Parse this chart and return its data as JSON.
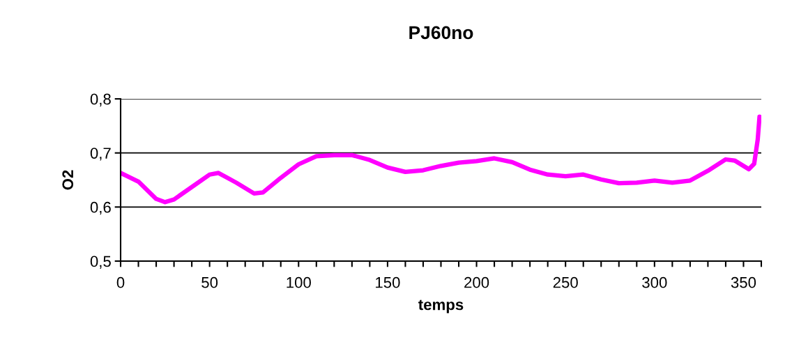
{
  "chart_data": {
    "type": "line",
    "title": "PJ60no",
    "xlabel": "temps",
    "ylabel": "O2",
    "x": [
      0,
      10,
      20,
      25,
      30,
      40,
      50,
      55,
      65,
      75,
      80,
      90,
      100,
      110,
      120,
      130,
      140,
      150,
      160,
      170,
      180,
      190,
      200,
      210,
      220,
      230,
      240,
      250,
      260,
      270,
      280,
      290,
      300,
      310,
      320,
      330,
      340,
      345,
      353,
      356,
      358,
      359
    ],
    "series": [
      {
        "color": "#ff00ff",
        "values": [
          0.663,
          0.647,
          0.615,
          0.609,
          0.614,
          0.637,
          0.66,
          0.663,
          0.645,
          0.625,
          0.627,
          0.654,
          0.679,
          0.694,
          0.696,
          0.696,
          0.687,
          0.673,
          0.665,
          0.668,
          0.676,
          0.682,
          0.685,
          0.69,
          0.683,
          0.669,
          0.66,
          0.657,
          0.66,
          0.651,
          0.644,
          0.645,
          0.649,
          0.645,
          0.649,
          0.667,
          0.688,
          0.686,
          0.67,
          0.68,
          0.725,
          0.767
        ]
      }
    ],
    "xlim": [
      0,
      360
    ],
    "xticks": [
      0,
      {
        "value": 10,
        "label": null
      },
      {
        "value": 20,
        "label": null
      },
      {
        "value": 30,
        "label": null
      },
      {
        "value": 40,
        "label": null
      },
      50,
      {
        "value": 60,
        "label": null
      },
      {
        "value": 70,
        "label": null
      },
      {
        "value": 80,
        "label": null
      },
      {
        "value": 90,
        "label": null
      },
      100,
      {
        "value": 110,
        "label": null
      },
      {
        "value": 120,
        "label": null
      },
      {
        "value": 130,
        "label": null
      },
      {
        "value": 140,
        "label": null
      },
      150,
      {
        "value": 160,
        "label": null
      },
      {
        "value": 170,
        "label": null
      },
      {
        "value": 180,
        "label": null
      },
      {
        "value": 190,
        "label": null
      },
      200,
      {
        "value": 210,
        "label": null
      },
      {
        "value": 220,
        "label": null
      },
      {
        "value": 230,
        "label": null
      },
      {
        "value": 240,
        "label": null
      },
      250,
      {
        "value": 260,
        "label": null
      },
      {
        "value": 270,
        "label": null
      },
      {
        "value": 280,
        "label": null
      },
      {
        "value": 290,
        "label": null
      },
      300,
      {
        "value": 310,
        "label": null
      },
      {
        "value": 320,
        "label": null
      },
      {
        "value": 330,
        "label": null
      },
      {
        "value": 340,
        "label": null
      },
      350,
      {
        "value": 360,
        "label": null
      }
    ],
    "ylim": [
      0.5,
      0.8
    ],
    "yticks": [
      {
        "value": 0.5,
        "label": "0,5"
      },
      {
        "value": 0.6,
        "label": "0,6"
      },
      {
        "value": 0.7,
        "label": "0,7"
      },
      {
        "value": 0.8,
        "label": "0,8"
      }
    ],
    "grid": "y",
    "line_style": "solid",
    "marker": "none"
  }
}
